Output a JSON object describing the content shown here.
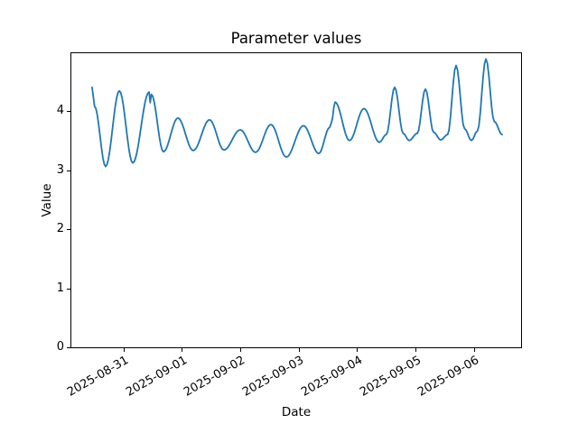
{
  "chart_data": {
    "type": "line",
    "title": "Parameter values",
    "xlabel": "Date",
    "ylabel": "Value",
    "grid": false,
    "legend": null,
    "line_color": "#1f77b4",
    "line_width": 1.8,
    "background_color": "#ffffff",
    "axis_color": "#000000",
    "x_axis": {
      "kind": "datetime",
      "day_zero": "2025-08-30",
      "domain_days": [
        0.108,
        7.808
      ],
      "tick_rotation_deg": 30,
      "ticks": [
        {
          "day": 1,
          "label": "2025-08-31"
        },
        {
          "day": 2,
          "label": "2025-09-01"
        },
        {
          "day": 3,
          "label": "2025-09-02"
        },
        {
          "day": 4,
          "label": "2025-09-03"
        },
        {
          "day": 5,
          "label": "2025-09-04"
        },
        {
          "day": 6,
          "label": "2025-09-05"
        },
        {
          "day": 7,
          "label": "2025-09-06"
        }
      ]
    },
    "y_axis": {
      "domain": [
        0,
        4.977
      ],
      "ticks": [
        {
          "value": 0,
          "label": "0"
        },
        {
          "value": 1,
          "label": "1"
        },
        {
          "value": 2,
          "label": "2"
        },
        {
          "value": 3,
          "label": "3"
        },
        {
          "value": 4,
          "label": "4"
        }
      ]
    },
    "points": [
      [
        0.463,
        4.4
      ],
      [
        0.505,
        4.08
      ],
      [
        0.695,
        3.06
      ],
      [
        0.93,
        4.34
      ],
      [
        1.16,
        3.12
      ],
      [
        1.44,
        4.32
      ],
      [
        1.458,
        4.14
      ],
      [
        1.478,
        4.28
      ],
      [
        1.685,
        3.31
      ],
      [
        1.932,
        3.88
      ],
      [
        2.195,
        3.33
      ],
      [
        2.474,
        3.85
      ],
      [
        2.721,
        3.34
      ],
      [
        3.0,
        3.68
      ],
      [
        3.262,
        3.3
      ],
      [
        3.525,
        3.77
      ],
      [
        3.788,
        3.22
      ],
      [
        4.082,
        3.75
      ],
      [
        4.345,
        3.28
      ],
      [
        4.53,
        3.72
      ],
      [
        4.56,
        3.8
      ],
      [
        4.623,
        4.15
      ],
      [
        4.87,
        3.5
      ],
      [
        5.118,
        4.04
      ],
      [
        5.381,
        3.47
      ],
      [
        5.5,
        3.6
      ],
      [
        5.644,
        4.4
      ],
      [
        5.79,
        3.62
      ],
      [
        5.891,
        3.5
      ],
      [
        6.03,
        3.62
      ],
      [
        6.17,
        4.37
      ],
      [
        6.31,
        3.64
      ],
      [
        6.432,
        3.51
      ],
      [
        6.55,
        3.6
      ],
      [
        6.695,
        4.77
      ],
      [
        6.84,
        3.7
      ],
      [
        6.958,
        3.5
      ],
      [
        7.06,
        3.66
      ],
      [
        7.206,
        4.88
      ],
      [
        7.35,
        3.82
      ],
      [
        7.483,
        3.6
      ]
    ]
  }
}
